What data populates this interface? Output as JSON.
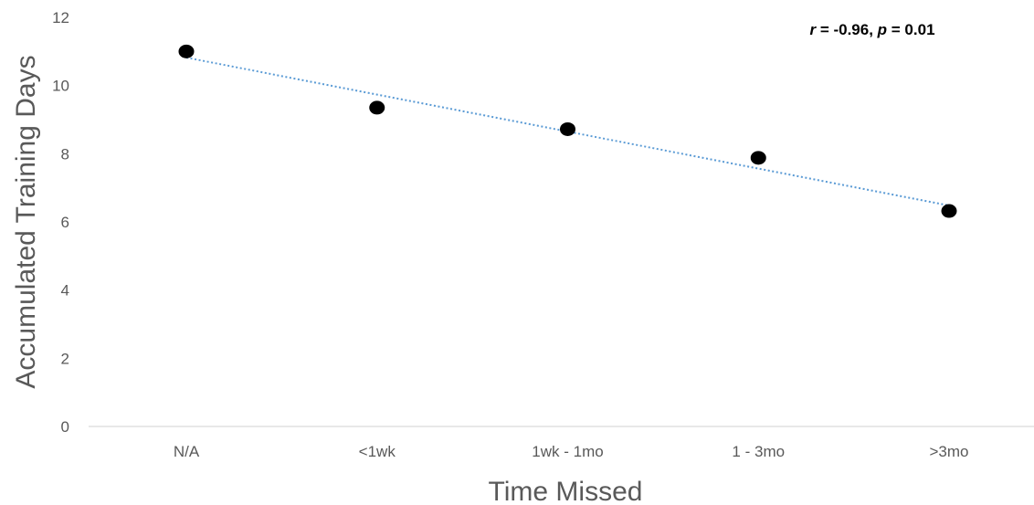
{
  "chart_data": {
    "type": "scatter",
    "categories": [
      "N/A",
      "<1wk",
      "1wk - 1mo",
      "1 - 3mo",
      ">3mo"
    ],
    "series": [
      {
        "values": [
          11.0,
          9.35,
          8.72,
          7.88,
          6.32
        ]
      }
    ],
    "trendline": {
      "type": "linear",
      "start": 10.82,
      "end": 6.48
    },
    "xlabel": "Time Missed",
    "ylabel": "Accumulated Training Days",
    "ylim": [
      0,
      12
    ],
    "yticks": [
      0,
      2,
      4,
      6,
      8,
      10,
      12
    ],
    "annotation": {
      "r_symbol": "r",
      "r_value": " = -0.96, ",
      "p_symbol": "p",
      "p_value": " = 0.01"
    },
    "grid": false,
    "legend": "none",
    "colors": {
      "marker": "#000000",
      "trendline": "#5b9bd5",
      "axis": "#d9d9d9",
      "text": "#595959"
    }
  }
}
